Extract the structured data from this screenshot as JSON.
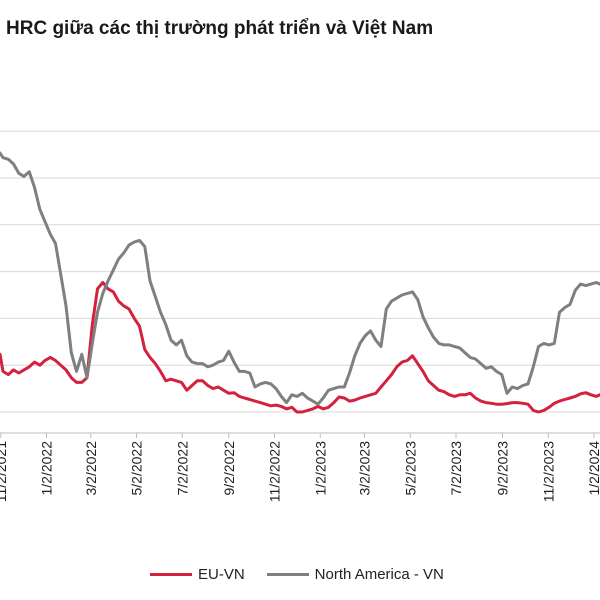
{
  "chart_data": {
    "type": "line",
    "title": "HRC giữa các thị trường phát triển và Việt Nam",
    "xlabel": "",
    "ylabel": "",
    "x_range": [
      "2021-11-01",
      "2024-01-10"
    ],
    "y_range": [
      0,
      9
    ],
    "grid": "horizontal",
    "y_tick_labels_visible": false,
    "legend_position": "bottom",
    "x_ticks": [
      {
        "date": "2021-11-02",
        "label": "11/2/2021"
      },
      {
        "date": "2022-01-02",
        "label": "1/2/2022"
      },
      {
        "date": "2022-03-02",
        "label": "3/2/2022"
      },
      {
        "date": "2022-05-02",
        "label": "5/2/2022"
      },
      {
        "date": "2022-07-02",
        "label": "7/2/2022"
      },
      {
        "date": "2022-09-02",
        "label": "9/2/2022"
      },
      {
        "date": "2022-11-02",
        "label": "11/2/2022"
      },
      {
        "date": "2023-01-02",
        "label": "1/2/2023"
      },
      {
        "date": "2023-03-02",
        "label": "3/2/2023"
      },
      {
        "date": "2023-05-02",
        "label": "5/2/2023"
      },
      {
        "date": "2023-07-02",
        "label": "7/2/2023"
      },
      {
        "date": "2023-09-02",
        "label": "9/2/2023"
      },
      {
        "date": "2023-11-02",
        "label": "11/2/2023"
      },
      {
        "date": "2024-01-02",
        "label": "1/2/2024"
      }
    ],
    "series": [
      {
        "name": "EU-VN",
        "color": "#d4213d",
        "points": [
          [
            "2021-11-01",
            1.85
          ],
          [
            "2021-11-05",
            1.3
          ],
          [
            "2021-11-12",
            1.2
          ],
          [
            "2021-11-19",
            1.35
          ],
          [
            "2021-11-26",
            1.25
          ],
          [
            "2021-12-03",
            1.35
          ],
          [
            "2021-12-10",
            1.45
          ],
          [
            "2021-12-17",
            1.6
          ],
          [
            "2021-12-24",
            1.5
          ],
          [
            "2021-12-31",
            1.65
          ],
          [
            "2022-01-07",
            1.75
          ],
          [
            "2022-01-14",
            1.65
          ],
          [
            "2022-01-21",
            1.5
          ],
          [
            "2022-01-28",
            1.35
          ],
          [
            "2022-02-04",
            1.1
          ],
          [
            "2022-02-11",
            0.95
          ],
          [
            "2022-02-18",
            0.95
          ],
          [
            "2022-02-25",
            1.1
          ],
          [
            "2022-03-04",
            2.8
          ],
          [
            "2022-03-11",
            3.95
          ],
          [
            "2022-03-18",
            4.15
          ],
          [
            "2022-03-25",
            3.95
          ],
          [
            "2022-04-01",
            3.85
          ],
          [
            "2022-04-08",
            3.55
          ],
          [
            "2022-04-15",
            3.4
          ],
          [
            "2022-04-22",
            3.3
          ],
          [
            "2022-04-29",
            3.0
          ],
          [
            "2022-05-06",
            2.75
          ],
          [
            "2022-05-13",
            2.0
          ],
          [
            "2022-05-20",
            1.75
          ],
          [
            "2022-05-27",
            1.55
          ],
          [
            "2022-06-03",
            1.3
          ],
          [
            "2022-06-10",
            1.0
          ],
          [
            "2022-06-17",
            1.05
          ],
          [
            "2022-06-24",
            1.0
          ],
          [
            "2022-07-01",
            0.95
          ],
          [
            "2022-07-08",
            0.7
          ],
          [
            "2022-07-15",
            0.85
          ],
          [
            "2022-07-22",
            1.0
          ],
          [
            "2022-07-29",
            1.0
          ],
          [
            "2022-08-05",
            0.85
          ],
          [
            "2022-08-12",
            0.75
          ],
          [
            "2022-08-19",
            0.8
          ],
          [
            "2022-08-26",
            0.7
          ],
          [
            "2022-09-02",
            0.6
          ],
          [
            "2022-09-09",
            0.62
          ],
          [
            "2022-09-16",
            0.5
          ],
          [
            "2022-09-23",
            0.45
          ],
          [
            "2022-09-30",
            0.4
          ],
          [
            "2022-10-07",
            0.35
          ],
          [
            "2022-10-14",
            0.3
          ],
          [
            "2022-10-21",
            0.25
          ],
          [
            "2022-10-28",
            0.2
          ],
          [
            "2022-11-04",
            0.22
          ],
          [
            "2022-11-11",
            0.18
          ],
          [
            "2022-11-18",
            0.1
          ],
          [
            "2022-11-25",
            0.15
          ],
          [
            "2022-12-02",
            0.0
          ],
          [
            "2022-12-09",
            0.0
          ],
          [
            "2022-12-16",
            0.05
          ],
          [
            "2022-12-23",
            0.1
          ],
          [
            "2022-12-30",
            0.18
          ],
          [
            "2023-01-06",
            0.1
          ],
          [
            "2023-01-13",
            0.15
          ],
          [
            "2023-01-20",
            0.3
          ],
          [
            "2023-01-27",
            0.48
          ],
          [
            "2023-02-03",
            0.45
          ],
          [
            "2023-02-10",
            0.35
          ],
          [
            "2023-02-17",
            0.38
          ],
          [
            "2023-02-24",
            0.45
          ],
          [
            "2023-03-03",
            0.5
          ],
          [
            "2023-03-10",
            0.55
          ],
          [
            "2023-03-17",
            0.6
          ],
          [
            "2023-03-24",
            0.8
          ],
          [
            "2023-03-31",
            1.0
          ],
          [
            "2023-04-07",
            1.2
          ],
          [
            "2023-04-14",
            1.45
          ],
          [
            "2023-04-21",
            1.6
          ],
          [
            "2023-04-28",
            1.65
          ],
          [
            "2023-05-05",
            1.8
          ],
          [
            "2023-05-12",
            1.55
          ],
          [
            "2023-05-19",
            1.3
          ],
          [
            "2023-05-26",
            1.0
          ],
          [
            "2023-06-02",
            0.85
          ],
          [
            "2023-06-09",
            0.7
          ],
          [
            "2023-06-16",
            0.65
          ],
          [
            "2023-06-23",
            0.55
          ],
          [
            "2023-06-30",
            0.5
          ],
          [
            "2023-07-07",
            0.55
          ],
          [
            "2023-07-14",
            0.55
          ],
          [
            "2023-07-21",
            0.6
          ],
          [
            "2023-07-28",
            0.45
          ],
          [
            "2023-08-04",
            0.35
          ],
          [
            "2023-08-11",
            0.3
          ],
          [
            "2023-08-18",
            0.28
          ],
          [
            "2023-08-25",
            0.25
          ],
          [
            "2023-09-01",
            0.25
          ],
          [
            "2023-09-08",
            0.27
          ],
          [
            "2023-09-15",
            0.3
          ],
          [
            "2023-09-22",
            0.3
          ],
          [
            "2023-09-29",
            0.28
          ],
          [
            "2023-10-06",
            0.25
          ],
          [
            "2023-10-13",
            0.05
          ],
          [
            "2023-10-20",
            0.0
          ],
          [
            "2023-10-27",
            0.05
          ],
          [
            "2023-11-03",
            0.15
          ],
          [
            "2023-11-10",
            0.28
          ],
          [
            "2023-11-17",
            0.35
          ],
          [
            "2023-11-24",
            0.4
          ],
          [
            "2023-12-01",
            0.45
          ],
          [
            "2023-12-08",
            0.5
          ],
          [
            "2023-12-15",
            0.58
          ],
          [
            "2023-12-22",
            0.62
          ],
          [
            "2023-12-29",
            0.55
          ],
          [
            "2024-01-05",
            0.5
          ],
          [
            "2024-01-10",
            0.55
          ]
        ]
      },
      {
        "name": "North America - VN",
        "color": "#7f7f7f",
        "points": [
          [
            "2021-11-01",
            8.3
          ],
          [
            "2021-11-05",
            8.15
          ],
          [
            "2021-11-12",
            8.1
          ],
          [
            "2021-11-19",
            7.95
          ],
          [
            "2021-11-26",
            7.65
          ],
          [
            "2021-12-03",
            7.55
          ],
          [
            "2021-12-10",
            7.7
          ],
          [
            "2021-12-17",
            7.2
          ],
          [
            "2021-12-24",
            6.5
          ],
          [
            "2021-12-31",
            6.1
          ],
          [
            "2022-01-07",
            5.7
          ],
          [
            "2022-01-14",
            5.4
          ],
          [
            "2022-01-21",
            4.4
          ],
          [
            "2022-01-28",
            3.4
          ],
          [
            "2022-02-04",
            1.9
          ],
          [
            "2022-02-11",
            1.3
          ],
          [
            "2022-02-18",
            1.85
          ],
          [
            "2022-02-25",
            1.1
          ],
          [
            "2022-03-04",
            2.2
          ],
          [
            "2022-03-11",
            3.2
          ],
          [
            "2022-03-18",
            3.8
          ],
          [
            "2022-03-25",
            4.2
          ],
          [
            "2022-04-01",
            4.55
          ],
          [
            "2022-04-08",
            4.9
          ],
          [
            "2022-04-15",
            5.1
          ],
          [
            "2022-04-22",
            5.35
          ],
          [
            "2022-04-29",
            5.45
          ],
          [
            "2022-05-06",
            5.5
          ],
          [
            "2022-05-13",
            5.3
          ],
          [
            "2022-05-20",
            4.2
          ],
          [
            "2022-05-27",
            3.7
          ],
          [
            "2022-06-03",
            3.2
          ],
          [
            "2022-06-10",
            2.8
          ],
          [
            "2022-06-17",
            2.3
          ],
          [
            "2022-06-24",
            2.15
          ],
          [
            "2022-07-01",
            2.3
          ],
          [
            "2022-07-08",
            1.8
          ],
          [
            "2022-07-15",
            1.6
          ],
          [
            "2022-07-22",
            1.55
          ],
          [
            "2022-07-29",
            1.55
          ],
          [
            "2022-08-05",
            1.45
          ],
          [
            "2022-08-12",
            1.5
          ],
          [
            "2022-08-19",
            1.6
          ],
          [
            "2022-08-26",
            1.65
          ],
          [
            "2022-09-02",
            1.95
          ],
          [
            "2022-09-09",
            1.6
          ],
          [
            "2022-09-16",
            1.3
          ],
          [
            "2022-09-23",
            1.3
          ],
          [
            "2022-09-30",
            1.25
          ],
          [
            "2022-10-07",
            0.8
          ],
          [
            "2022-10-14",
            0.9
          ],
          [
            "2022-10-21",
            0.95
          ],
          [
            "2022-10-28",
            0.9
          ],
          [
            "2022-11-04",
            0.75
          ],
          [
            "2022-11-11",
            0.5
          ],
          [
            "2022-11-18",
            0.3
          ],
          [
            "2022-11-25",
            0.55
          ],
          [
            "2022-12-02",
            0.5
          ],
          [
            "2022-12-09",
            0.6
          ],
          [
            "2022-12-16",
            0.45
          ],
          [
            "2022-12-23",
            0.35
          ],
          [
            "2022-12-30",
            0.25
          ],
          [
            "2023-01-06",
            0.45
          ],
          [
            "2023-01-13",
            0.7
          ],
          [
            "2023-01-20",
            0.75
          ],
          [
            "2023-01-27",
            0.8
          ],
          [
            "2023-02-03",
            0.8
          ],
          [
            "2023-02-10",
            1.25
          ],
          [
            "2023-02-17",
            1.8
          ],
          [
            "2023-02-24",
            2.2
          ],
          [
            "2023-03-03",
            2.45
          ],
          [
            "2023-03-10",
            2.6
          ],
          [
            "2023-03-17",
            2.3
          ],
          [
            "2023-03-24",
            2.1
          ],
          [
            "2023-03-31",
            3.3
          ],
          [
            "2023-04-07",
            3.55
          ],
          [
            "2023-04-14",
            3.65
          ],
          [
            "2023-04-21",
            3.75
          ],
          [
            "2023-04-28",
            3.8
          ],
          [
            "2023-05-05",
            3.85
          ],
          [
            "2023-05-12",
            3.6
          ],
          [
            "2023-05-19",
            3.05
          ],
          [
            "2023-05-26",
            2.7
          ],
          [
            "2023-06-02",
            2.4
          ],
          [
            "2023-06-09",
            2.2
          ],
          [
            "2023-06-16",
            2.15
          ],
          [
            "2023-06-23",
            2.15
          ],
          [
            "2023-06-30",
            2.1
          ],
          [
            "2023-07-07",
            2.05
          ],
          [
            "2023-07-14",
            1.9
          ],
          [
            "2023-07-21",
            1.75
          ],
          [
            "2023-07-28",
            1.7
          ],
          [
            "2023-08-04",
            1.55
          ],
          [
            "2023-08-11",
            1.4
          ],
          [
            "2023-08-18",
            1.45
          ],
          [
            "2023-08-25",
            1.3
          ],
          [
            "2023-09-01",
            1.2
          ],
          [
            "2023-09-08",
            0.6
          ],
          [
            "2023-09-15",
            0.8
          ],
          [
            "2023-09-22",
            0.75
          ],
          [
            "2023-09-29",
            0.85
          ],
          [
            "2023-10-06",
            0.9
          ],
          [
            "2023-10-13",
            1.45
          ],
          [
            "2023-10-20",
            2.1
          ],
          [
            "2023-10-27",
            2.2
          ],
          [
            "2023-11-03",
            2.15
          ],
          [
            "2023-11-10",
            2.2
          ],
          [
            "2023-11-17",
            3.2
          ],
          [
            "2023-11-24",
            3.35
          ],
          [
            "2023-12-01",
            3.45
          ],
          [
            "2023-12-08",
            3.9
          ],
          [
            "2023-12-15",
            4.1
          ],
          [
            "2023-12-22",
            4.05
          ],
          [
            "2023-12-29",
            4.1
          ],
          [
            "2024-01-05",
            4.15
          ],
          [
            "2024-01-10",
            4.1
          ]
        ]
      }
    ]
  }
}
